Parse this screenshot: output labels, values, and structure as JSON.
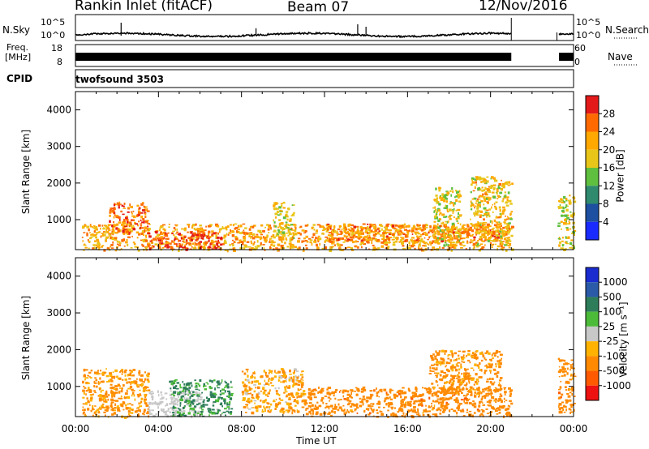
{
  "header": {
    "station": "Rankin Inlet (fitACF)",
    "beam": "Beam 07",
    "date": "12/Nov/2016"
  },
  "noise_panel": {
    "left_label": "N.Sky",
    "right_label": "N.Search",
    "left_ticks": [
      "10^5",
      "10^0"
    ],
    "right_ticks": [
      "10^5",
      "10^0"
    ]
  },
  "freq_panel": {
    "left_label_1": "Freq.",
    "left_label_2": "[MHz]",
    "right_label": "Nave",
    "left_ticks": [
      "18",
      "8"
    ],
    "right_ticks": [
      "60",
      "0"
    ]
  },
  "cpid_panel": {
    "label": "CPID",
    "program": "twofsound 3503"
  },
  "power_panel": {
    "ylabel": "Slant Range [km]",
    "cbar_label": "Power [dB]",
    "cbar_ticks": [
      "28",
      "24",
      "20",
      "16",
      "12",
      "8",
      "4"
    ],
    "cbar_colors": [
      "#e41a1a",
      "#ff6a00",
      "#ffa800",
      "#e8c619",
      "#5fbf3f",
      "#2f8a6e",
      "#1e4fa0",
      "#1a2bff"
    ]
  },
  "velocity_panel": {
    "ylabel": "Slant Range [km]",
    "cbar_label": "Velocity [m s⁻¹]",
    "cbar_ticks": [
      "1000",
      "500",
      "100",
      "25",
      "-25",
      "-100",
      "-500",
      "-1000"
    ],
    "cbar_colors": [
      "#1a2bd0",
      "#2a5aa8",
      "#2e7d5a",
      "#4dbb3a",
      "#c8c8c8",
      "#ffb300",
      "#ff8a00",
      "#ff5a00",
      "#ee1111"
    ]
  },
  "xaxis": {
    "label": "Time UT",
    "ticks": [
      "00:00",
      "04:00",
      "08:00",
      "12:00",
      "16:00",
      "20:00",
      "00:00"
    ]
  },
  "chart_data": [
    {
      "type": "heatmap",
      "title": "Power",
      "xlabel": "Time UT",
      "ylabel": "Slant Range [km]",
      "xlim": [
        0,
        24
      ],
      "ylim": [
        180,
        4500
      ],
      "yticks": [
        1000,
        2000,
        3000,
        4000
      ],
      "zlabel": "Power [dB]",
      "zlim": [
        0,
        30
      ],
      "data_gap_hours": [
        21.0,
        23.2
      ],
      "regions": [
        {
          "t0": 0.3,
          "t1": 21.0,
          "r0": 180,
          "r1": 900,
          "value": 22
        },
        {
          "t0": 1.6,
          "t1": 3.5,
          "r0": 600,
          "r1": 1500,
          "value": 26
        },
        {
          "t0": 3.5,
          "t1": 7.0,
          "r0": 200,
          "r1": 700,
          "value": 28
        },
        {
          "t0": 9.5,
          "t1": 10.5,
          "r0": 500,
          "r1": 1500,
          "value": 18
        },
        {
          "t0": 12.0,
          "t1": 20.5,
          "r0": 400,
          "r1": 900,
          "value": 24
        },
        {
          "t0": 17.2,
          "t1": 18.5,
          "r0": 300,
          "r1": 1900,
          "value": 18
        },
        {
          "t0": 19.0,
          "t1": 21.0,
          "r0": 300,
          "r1": 2200,
          "value": 20
        },
        {
          "t0": 23.2,
          "t1": 24.0,
          "r0": 200,
          "r1": 1700,
          "value": 18
        }
      ]
    },
    {
      "type": "heatmap",
      "title": "Velocity",
      "xlabel": "Time UT",
      "ylabel": "Slant Range [km]",
      "xlim": [
        0,
        24
      ],
      "ylim": [
        180,
        4500
      ],
      "yticks": [
        1000,
        2000,
        3000,
        4000
      ],
      "zlabel": "Velocity [m s⁻¹]",
      "zlim": [
        -1000,
        1000
      ],
      "data_gap_hours": [
        21.0,
        23.2
      ],
      "regions": [
        {
          "t0": 0.3,
          "t1": 3.5,
          "r0": 180,
          "r1": 1500,
          "value": -150
        },
        {
          "t0": 3.5,
          "t1": 6.0,
          "r0": 200,
          "r1": 900,
          "value": 0
        },
        {
          "t0": 4.5,
          "t1": 7.5,
          "r0": 200,
          "r1": 1200,
          "value": 120
        },
        {
          "t0": 8.0,
          "t1": 11.0,
          "r0": 300,
          "r1": 1500,
          "value": -100
        },
        {
          "t0": 11.0,
          "t1": 21.0,
          "r0": 200,
          "r1": 1000,
          "value": -300
        },
        {
          "t0": 17.0,
          "t1": 20.5,
          "r0": 800,
          "r1": 2000,
          "value": -200
        },
        {
          "t0": 23.2,
          "t1": 24.0,
          "r0": 300,
          "r1": 1800,
          "value": -300
        }
      ]
    }
  ]
}
